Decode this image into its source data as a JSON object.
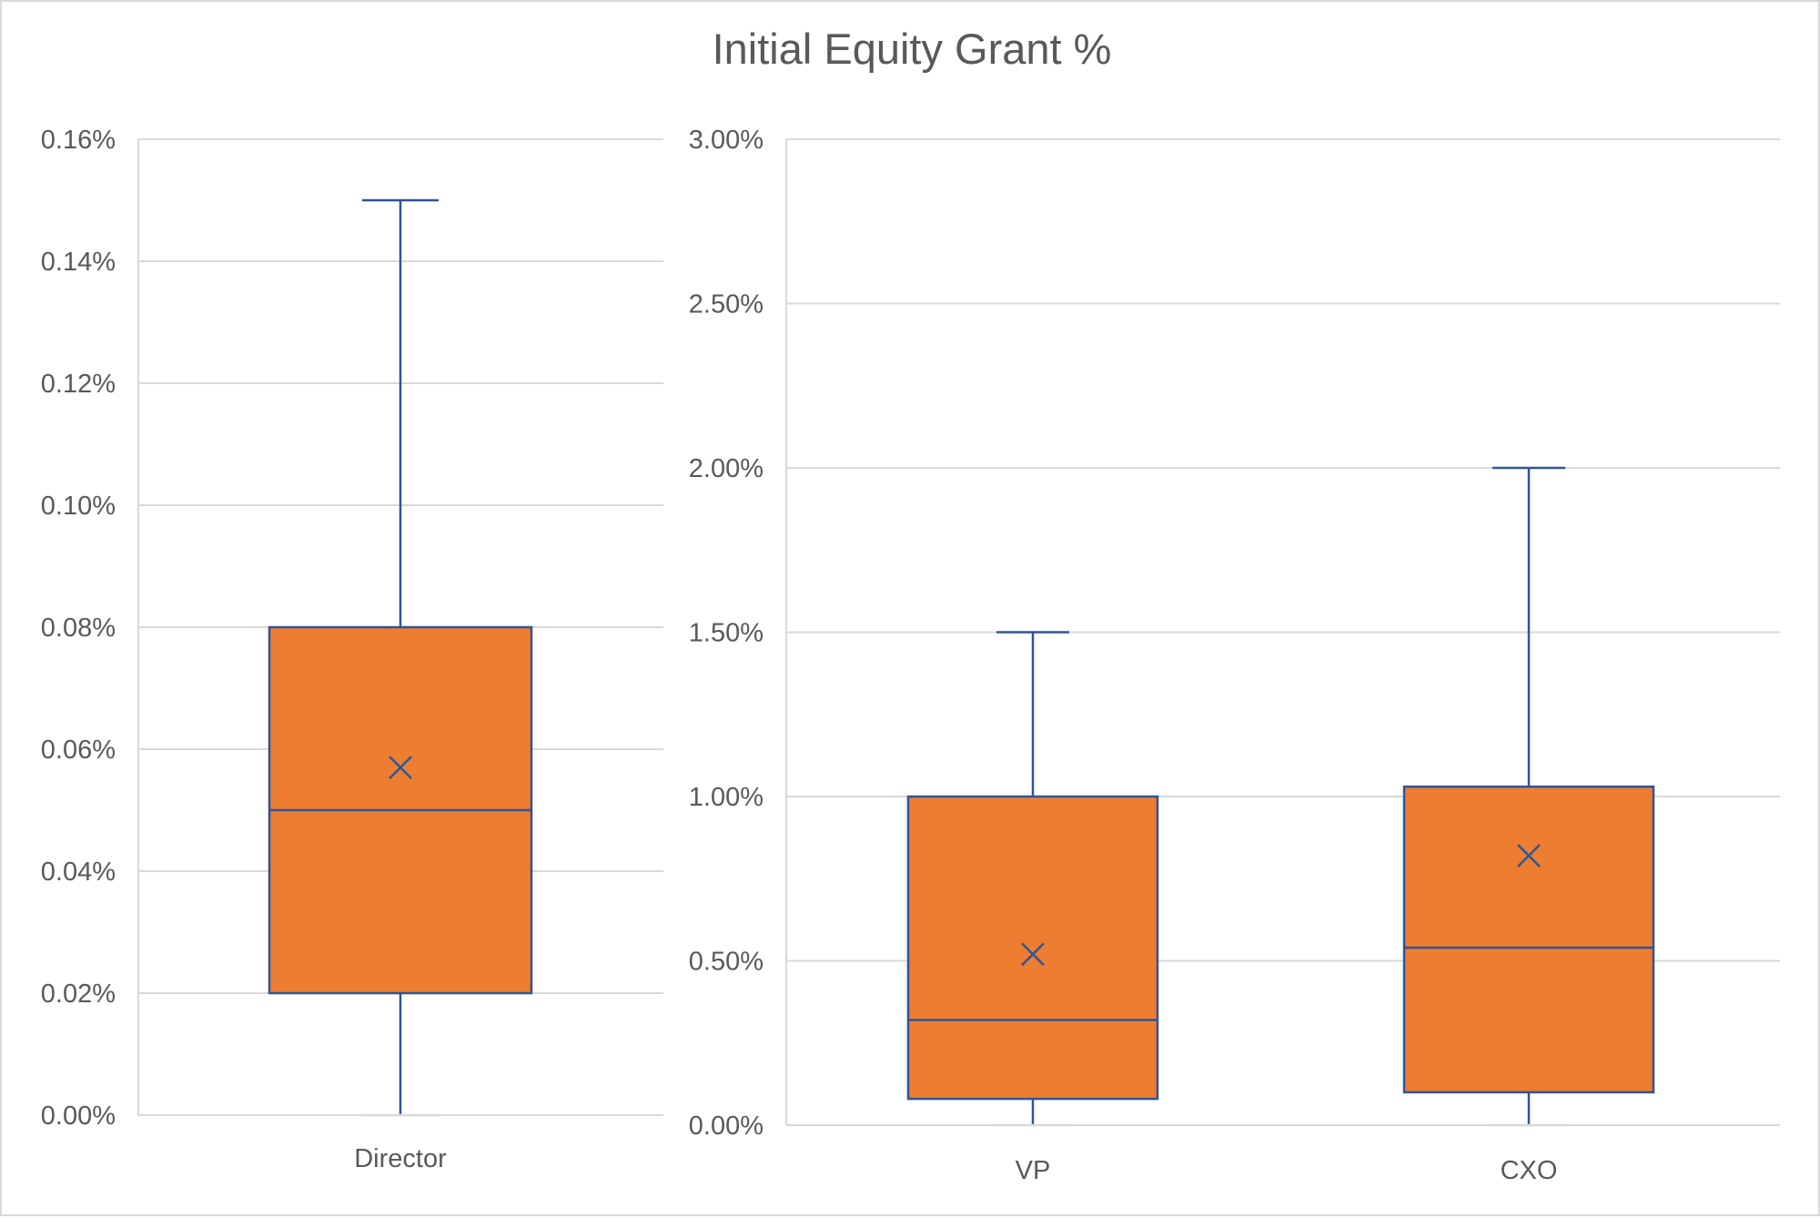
{
  "colors": {
    "box_fill": "#ED7D31",
    "box_stroke": "#2F5597",
    "grid": "#d9d9d9",
    "text": "#595959"
  },
  "chart_data": {
    "type": "boxplot",
    "title": "Initial Equity Grant %",
    "panels": [
      {
        "categories": [
          "Director"
        ],
        "ylim": [
          0,
          0.16
        ],
        "yticks": [
          0,
          0.02,
          0.04,
          0.06,
          0.08,
          0.1,
          0.12,
          0.14,
          0.16
        ],
        "ytick_labels": [
          "0.00%",
          "0.02%",
          "0.04%",
          "0.06%",
          "0.08%",
          "0.10%",
          "0.12%",
          "0.14%",
          "0.16%"
        ],
        "boxes": [
          {
            "category": "Director",
            "min": 0.0,
            "q1": 0.02,
            "median": 0.05,
            "q3": 0.08,
            "max": 0.15,
            "mean": 0.057
          }
        ]
      },
      {
        "categories": [
          "VP",
          "CXO"
        ],
        "ylim": [
          0,
          3.0
        ],
        "yticks": [
          0,
          0.5,
          1.0,
          1.5,
          2.0,
          2.5,
          3.0
        ],
        "ytick_labels": [
          "0.00%",
          "0.50%",
          "1.00%",
          "1.50%",
          "2.00%",
          "2.50%",
          "3.00%"
        ],
        "boxes": [
          {
            "category": "VP",
            "min": 0.0,
            "q1": 0.08,
            "median": 0.32,
            "q3": 1.0,
            "max": 1.5,
            "mean": 0.52
          },
          {
            "category": "CXO",
            "min": 0.0,
            "q1": 0.1,
            "median": 0.54,
            "q3": 1.03,
            "max": 2.0,
            "mean": 0.82
          }
        ]
      }
    ]
  }
}
